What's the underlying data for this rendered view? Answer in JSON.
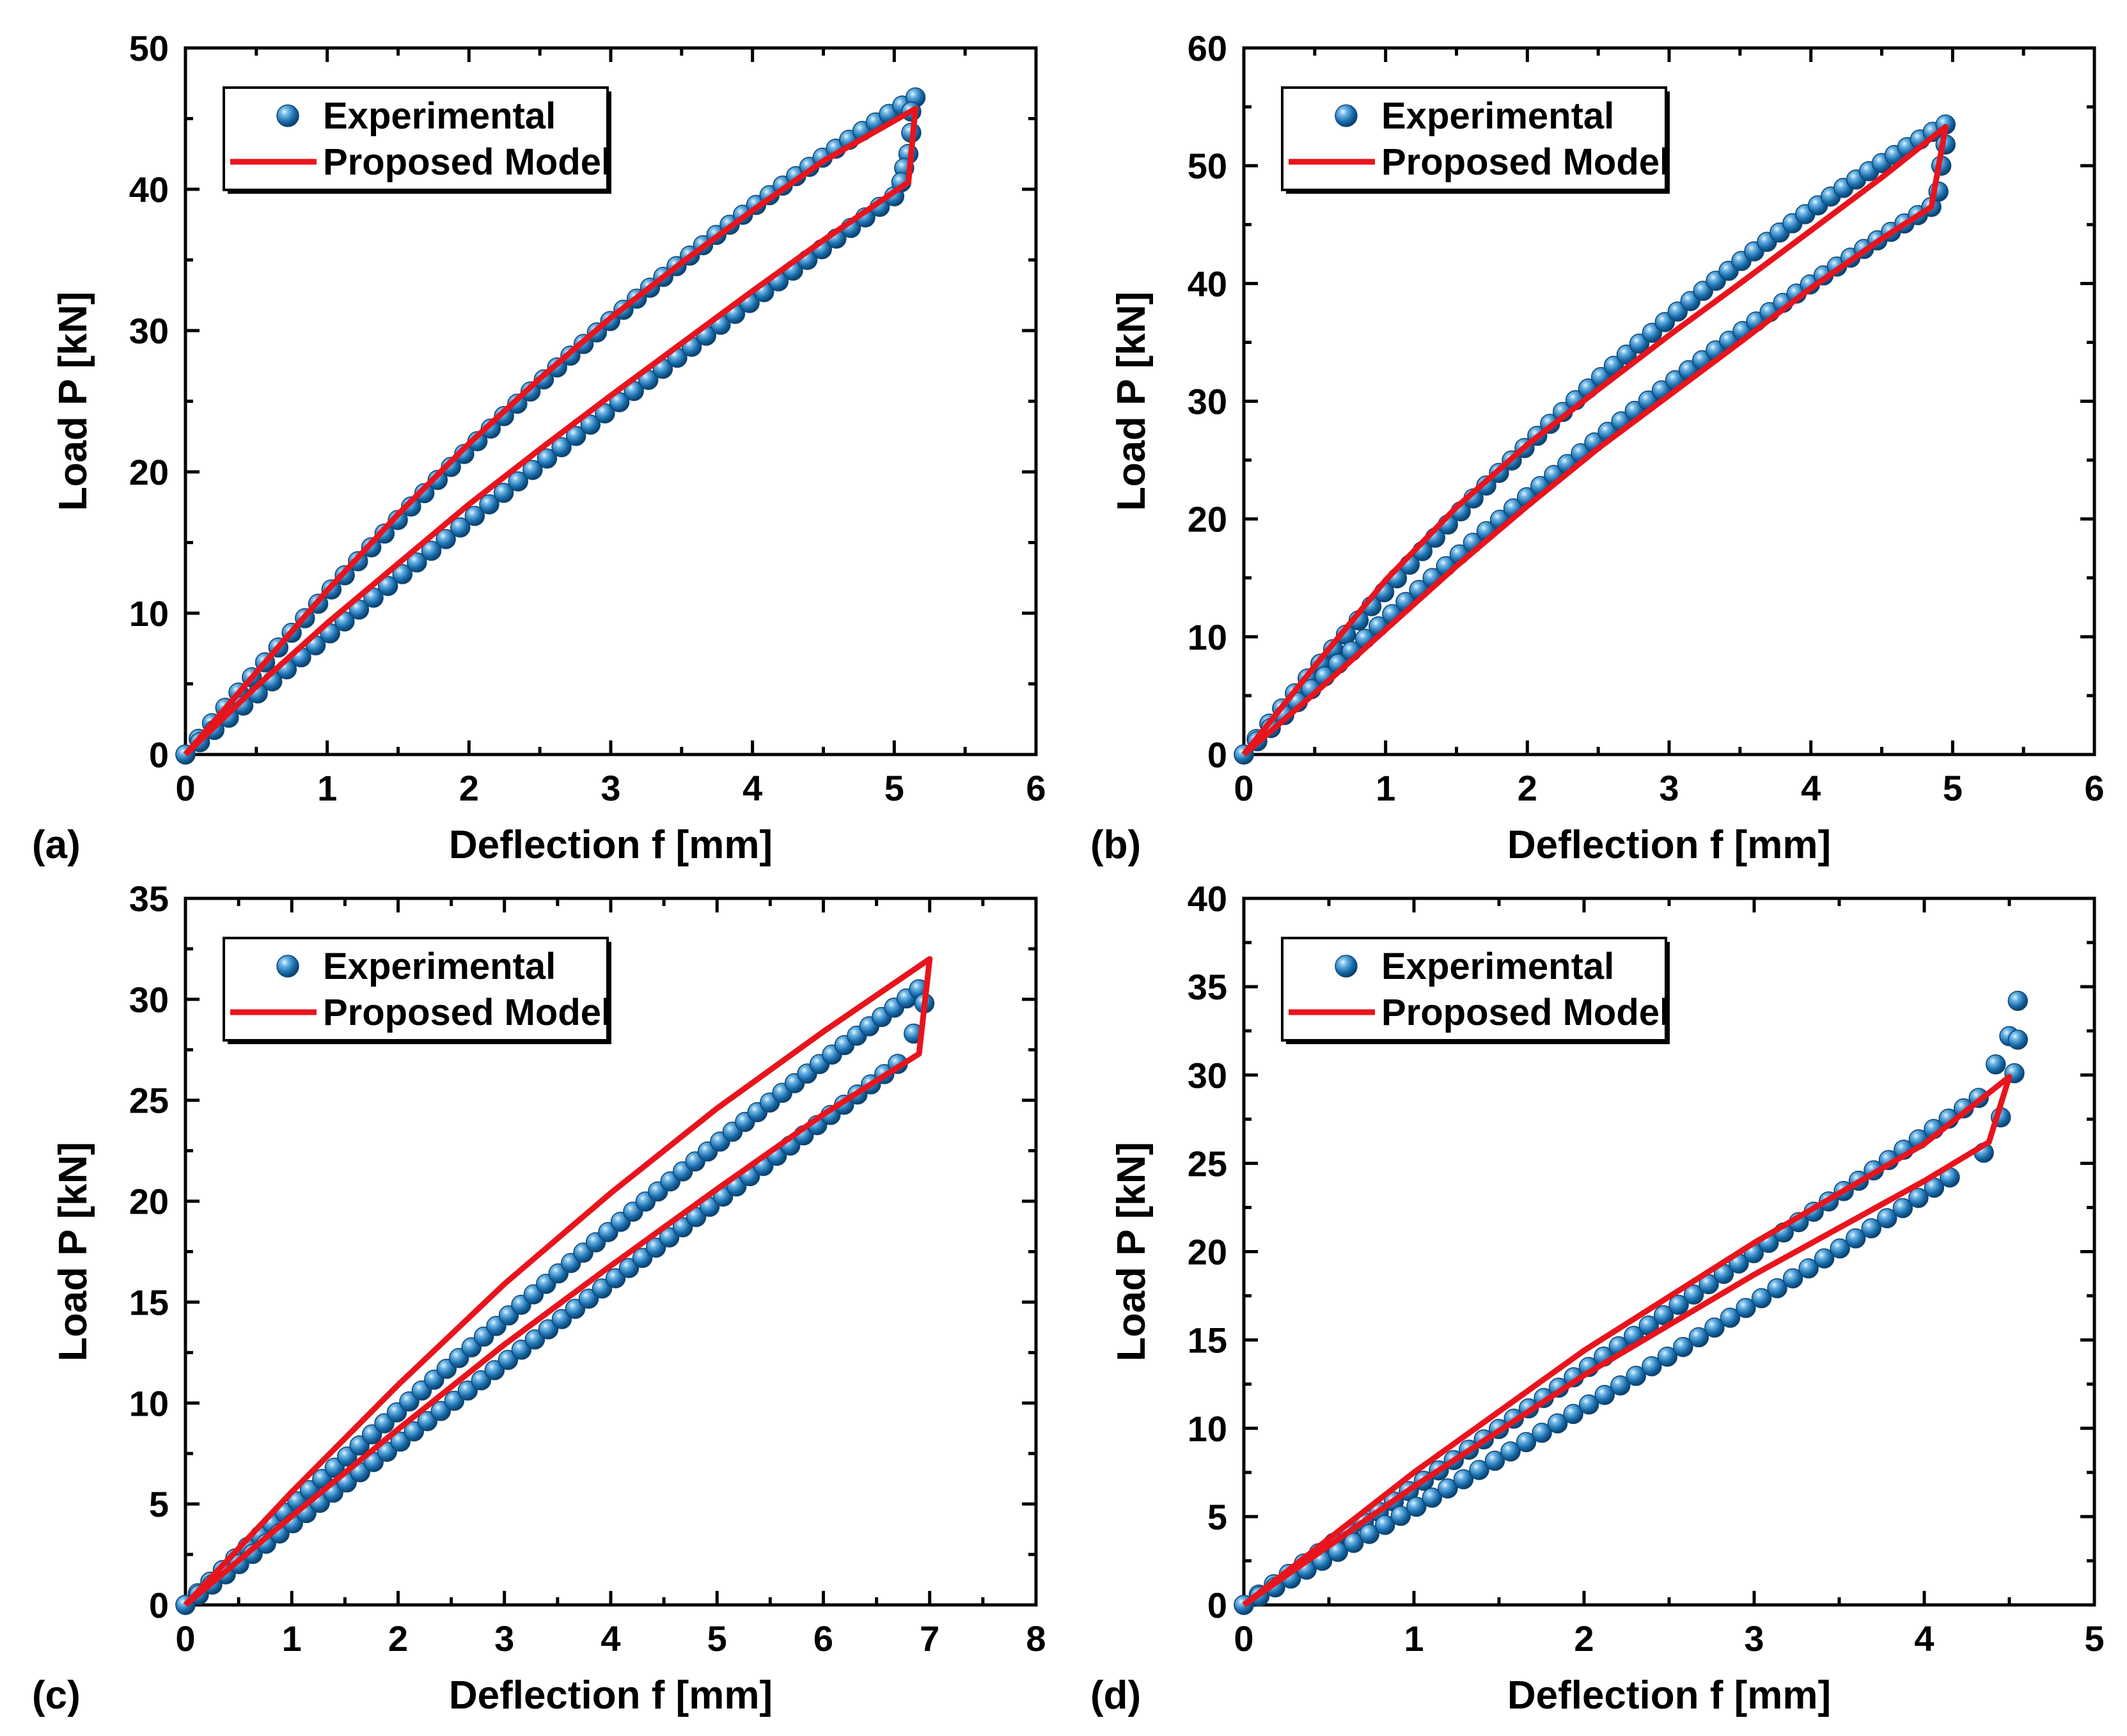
{
  "colors": {
    "experimental": "#1a6fae",
    "model": "#e8141d"
  },
  "chart_data": [
    {
      "type": "line",
      "panel": "(a)",
      "xlabel": "Deflection f  [mm]",
      "ylabel": "Load P [kN]",
      "xlim": [
        0,
        6
      ],
      "ylim": [
        0,
        50
      ],
      "xticks": [
        "0",
        "1",
        "2",
        "3",
        "4",
        "5",
        "6"
      ],
      "yticks": [
        "0",
        "10",
        "20",
        "30",
        "40",
        "50"
      ],
      "legend": {
        "position": "top-left",
        "entries": [
          "Experimental",
          "Proposed Model"
        ]
      },
      "series": [
        {
          "name": "Experimental",
          "kind": "markers",
          "loading": {
            "x": [
              0,
              5.15
            ],
            "y": [
              0,
              46.5
            ],
            "curve": 0.08,
            "n": 56
          },
          "unloading": {
            "x": [
              0,
              5.0
            ],
            "y": [
              0,
              39.5
            ],
            "curve": 0.02,
            "n": 50
          },
          "end": [
            [
              5.12,
              45.5
            ],
            [
              5.12,
              44.0
            ],
            [
              5.1,
              42.5
            ],
            [
              5.07,
              41.5
            ],
            [
              5.05,
              40.5
            ]
          ]
        },
        {
          "name": "Proposed Model",
          "kind": "line",
          "points": [
            [
              0,
              0
            ],
            [
              0.5,
              5.8
            ],
            [
              1,
              11.6
            ],
            [
              1.5,
              17.0
            ],
            [
              2,
              22.0
            ],
            [
              2.5,
              26.6
            ],
            [
              3,
              30.9
            ],
            [
              3.5,
              34.8
            ],
            [
              4,
              38.5
            ],
            [
              4.5,
              42.0
            ],
            [
              5.15,
              45.7
            ],
            [
              5.1,
              40.5
            ],
            [
              4.5,
              36.4
            ],
            [
              4,
              32.8
            ],
            [
              3.5,
              29.1
            ],
            [
              3,
              25.4
            ],
            [
              2.5,
              21.6
            ],
            [
              2,
              17.7
            ],
            [
              1.5,
              13.5
            ],
            [
              1,
              9.3
            ],
            [
              0.5,
              4.8
            ],
            [
              0,
              0
            ]
          ]
        }
      ]
    },
    {
      "type": "line",
      "panel": "(b)",
      "xlabel": "Deflection f  [mm]",
      "ylabel": "Load P [kN]",
      "xlim": [
        0,
        6
      ],
      "ylim": [
        0,
        60
      ],
      "xticks": [
        "0",
        "1",
        "2",
        "3",
        "4",
        "5",
        "6"
      ],
      "yticks": [
        "0",
        "10",
        "20",
        "30",
        "40",
        "50",
        "60"
      ],
      "legend": {
        "position": "top-left",
        "entries": [
          "Experimental",
          "Proposed Model"
        ]
      },
      "series": [
        {
          "name": "Experimental",
          "kind": "markers",
          "loading": {
            "x": [
              0,
              4.95
            ],
            "y": [
              0,
              53.5
            ],
            "curve": 0.09,
            "n": 56
          },
          "unloading": {
            "x": [
              0,
              4.85
            ],
            "y": [
              0,
              46.5
            ],
            "curve": 0.06,
            "n": 52
          },
          "end": [
            [
              4.95,
              51.8
            ],
            [
              4.92,
              50.0
            ],
            [
              4.9,
              47.8
            ]
          ]
        },
        {
          "name": "Proposed Model",
          "kind": "line",
          "points": [
            [
              0,
              0
            ],
            [
              0.5,
              7.5
            ],
            [
              1,
              14.8
            ],
            [
              1.5,
              21.0
            ],
            [
              2,
              26.3
            ],
            [
              2.5,
              31.0
            ],
            [
              3,
              35.6
            ],
            [
              3.5,
              40.0
            ],
            [
              4,
              44.5
            ],
            [
              4.5,
              49.0
            ],
            [
              4.95,
              53.3
            ],
            [
              4.85,
              46.5
            ],
            [
              4.5,
              43.8
            ],
            [
              4,
              39.6
            ],
            [
              3.5,
              35.0
            ],
            [
              3,
              30.5
            ],
            [
              2.5,
              26.0
            ],
            [
              2,
              21.1
            ],
            [
              1.5,
              16.0
            ],
            [
              1,
              10.6
            ],
            [
              0.5,
              5.2
            ],
            [
              0,
              0
            ]
          ]
        }
      ]
    },
    {
      "type": "line",
      "panel": "(c)",
      "xlabel": "Deflection f  [mm]",
      "ylabel": "Load P [kN]",
      "xlim": [
        0,
        8
      ],
      "ylim": [
        0,
        35
      ],
      "xticks": [
        "0",
        "1",
        "2",
        "3",
        "4",
        "5",
        "6",
        "7",
        "8"
      ],
      "yticks": [
        "0",
        "5",
        "10",
        "15",
        "20",
        "25",
        "30",
        "35"
      ],
      "legend": {
        "position": "top-left",
        "entries": [
          "Experimental",
          "Proposed Model"
        ]
      },
      "series": [
        {
          "name": "Experimental",
          "kind": "markers",
          "loading": {
            "x": [
              0,
              6.9
            ],
            "y": [
              0,
              30.5
            ],
            "curve": 0.03,
            "n": 60
          },
          "unloading": {
            "x": [
              0,
              6.7
            ],
            "y": [
              0,
              26.8
            ],
            "curve": 0.0,
            "n": 54
          },
          "end": [
            [
              6.95,
              29.8
            ],
            [
              6.85,
              28.3
            ]
          ]
        },
        {
          "name": "Proposed Model",
          "kind": "line",
          "points": [
            [
              0,
              0
            ],
            [
              1,
              5.6
            ],
            [
              2,
              10.9
            ],
            [
              3,
              15.9
            ],
            [
              4,
              20.4
            ],
            [
              5,
              24.6
            ],
            [
              6,
              28.4
            ],
            [
              7,
              32.0
            ],
            [
              6.9,
              27.3
            ],
            [
              6,
              24.3
            ],
            [
              5,
              20.6
            ],
            [
              4,
              16.8
            ],
            [
              3,
              12.9
            ],
            [
              2,
              8.7
            ],
            [
              1,
              4.4
            ],
            [
              0,
              0
            ]
          ]
        }
      ]
    },
    {
      "type": "line",
      "panel": "(d)",
      "xlabel": "Deflection f  [mm]",
      "ylabel": "Load P [kN]",
      "xlim": [
        0,
        5
      ],
      "ylim": [
        0,
        40
      ],
      "xticks": [
        "0",
        "1",
        "2",
        "3",
        "4",
        "5"
      ],
      "yticks": [
        "0",
        "5",
        "10",
        "15",
        "20",
        "25",
        "30",
        "35",
        "40"
      ],
      "legend": {
        "position": "top-left",
        "entries": [
          "Experimental",
          "Proposed Model"
        ]
      },
      "series": [
        {
          "name": "Experimental",
          "kind": "markers",
          "loading": {
            "x": [
              0,
              4.32
            ],
            "y": [
              0,
              28.7
            ],
            "curve": 0.0,
            "n": 50
          },
          "unloading": {
            "x": [
              0,
              4.15
            ],
            "y": [
              0,
              24.2
            ],
            "curve": -0.02,
            "n": 46
          },
          "end": [
            [
              4.55,
              34.2
            ],
            [
              4.5,
              32.2
            ],
            [
              4.55,
              32.0
            ],
            [
              4.42,
              30.6
            ],
            [
              4.53,
              30.1
            ],
            [
              4.45,
              27.6
            ],
            [
              4.35,
              25.6
            ]
          ]
        },
        {
          "name": "Proposed Model",
          "kind": "line",
          "points": [
            [
              0,
              0
            ],
            [
              1,
              7.5
            ],
            [
              2,
              14.4
            ],
            [
              3,
              20.5
            ],
            [
              4,
              26.1
            ],
            [
              4.5,
              29.9
            ],
            [
              4.38,
              26.2
            ],
            [
              4,
              24.0
            ],
            [
              3,
              18.7
            ],
            [
              2,
              13.0
            ],
            [
              1,
              6.7
            ],
            [
              0,
              0
            ]
          ]
        }
      ]
    }
  ]
}
